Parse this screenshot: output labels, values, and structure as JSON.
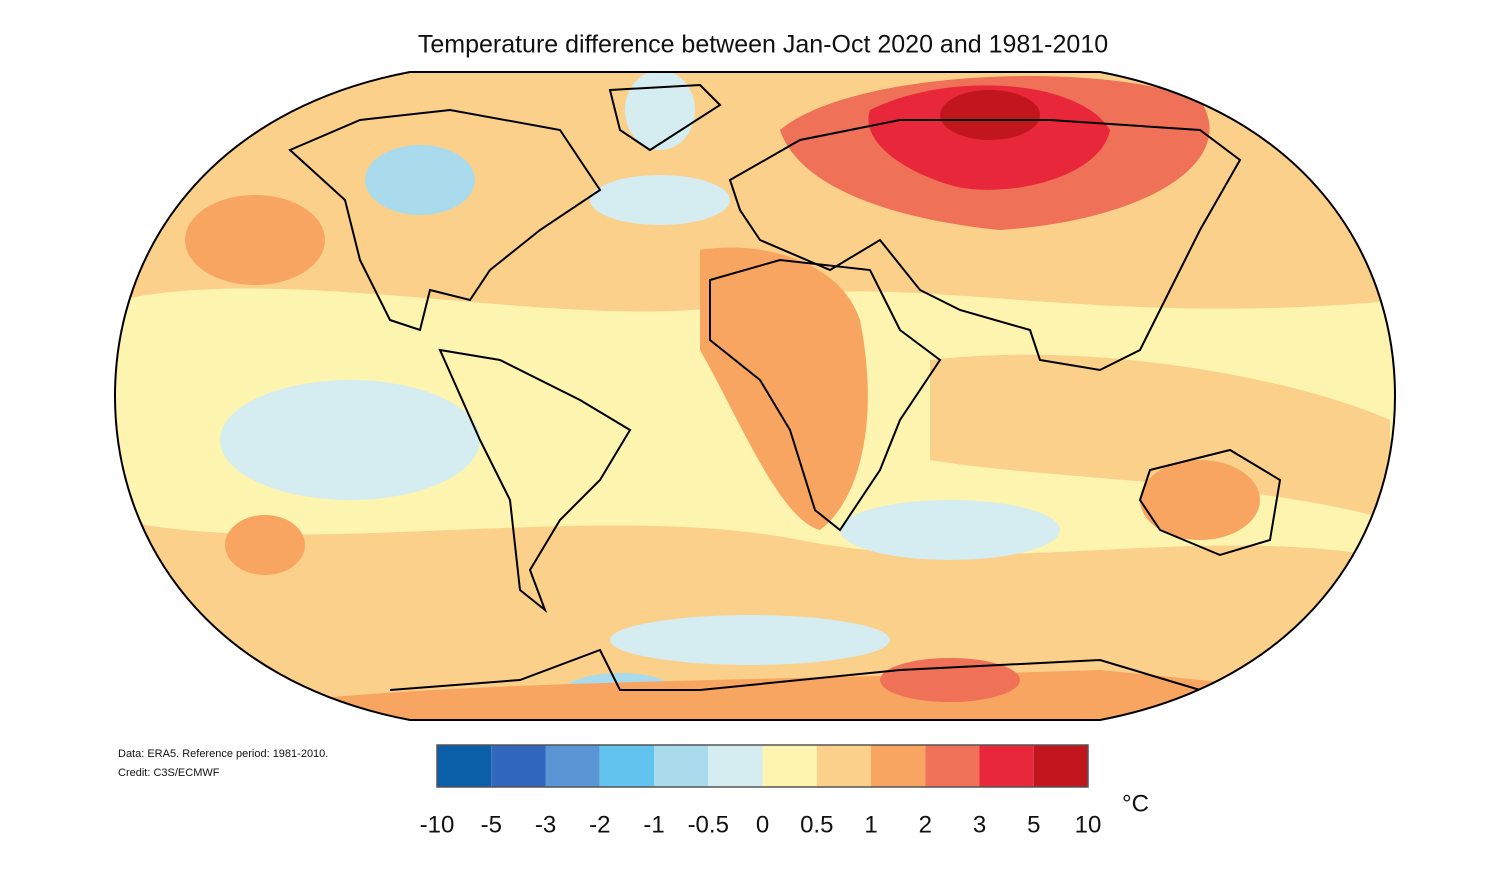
{
  "title": "Temperature difference between Jan-Oct 2020 and 1981-2010",
  "notes": [
    "Data: ERA5.  Reference period: 1981-2010.",
    "Credit: C3S/ECMWF"
  ],
  "colorbar": {
    "colors": [
      "#0a5fa8",
      "#3168bd",
      "#5a96d6",
      "#62c4ee",
      "#a9dbec",
      "#d5ecf0",
      "#fdf4b0",
      "#fbd08a",
      "#f7a561",
      "#ef7158",
      "#e8283a",
      "#c2161e"
    ],
    "ticks": [
      -10,
      -5,
      -3,
      -2,
      -1,
      -0.5,
      0,
      0.5,
      1,
      2,
      3,
      5,
      10
    ],
    "unit": "°C"
  }
}
